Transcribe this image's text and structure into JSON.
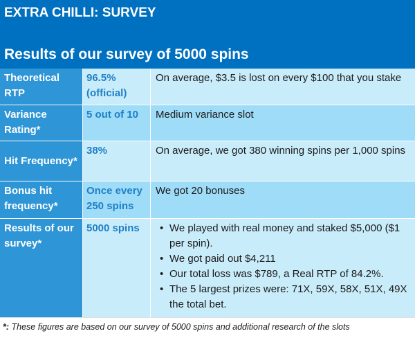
{
  "header": {
    "title": "EXTRA CHILLI: SURVEY",
    "subtitle": "Results of our survey of 5000 spins"
  },
  "rows": [
    {
      "label": "Theoretical RTP",
      "value": "96.5% (official)",
      "note": "On average, $3.5 is lost on every $100 that you stake"
    },
    {
      "label": "Variance Rating*",
      "value": "5 out of 10",
      "note": "Medium variance slot"
    },
    {
      "label": "Hit Frequency*",
      "value": "38%",
      "note": "On average, we got 380 winning spins per 1,000 spins"
    },
    {
      "label": "Bonus hit frequency*",
      "value": "Once every 250 spins",
      "note": "We got 20 bonuses"
    },
    {
      "label": "Results of our survey*",
      "value": "5000 spins",
      "bullets": [
        "We played with real money and staked $5,000 ($1 per spin).",
        "We got paid out $4,211",
        "Our total loss was $789, a Real RTP of 84.2%.",
        "The 5 largest prizes were: 71X, 59X, 58X, 51X, 49X the total bet."
      ]
    }
  ],
  "footnote": {
    "marker": "*:",
    "text": "These figures are based on our survey of 5000 spins and additional research of the slots"
  },
  "colors": {
    "banner": "#0070c0",
    "label_cell": "#2e95d6",
    "value_text": "#1f7fc6",
    "row_light": "#c9ecfa",
    "row_dark": "#9edcf7"
  }
}
